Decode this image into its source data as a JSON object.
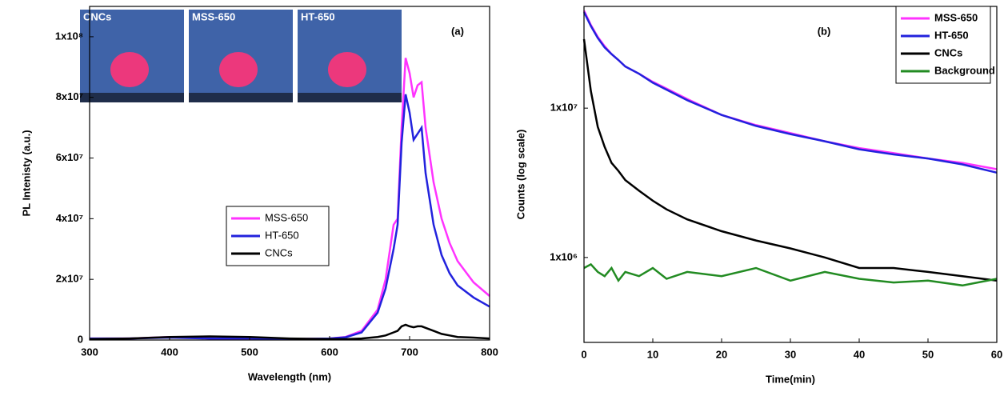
{
  "chart_data": [
    {
      "type": "line",
      "panel_label": "(a)",
      "x_label": "Wavelength (nm)",
      "y_label": "PL Intenisty (a.u.)",
      "inset_labels": [
        "CNCs",
        "MSS-650",
        "HT-650"
      ],
      "x": [
        300,
        350,
        400,
        450,
        500,
        550,
        600,
        620,
        640,
        660,
        670,
        680,
        685,
        690,
        695,
        700,
        705,
        710,
        715,
        720,
        730,
        740,
        750,
        760,
        780,
        800
      ],
      "series": [
        {
          "name": "MSS-650",
          "color": "#ff33ff",
          "values": [
            500000,
            500000,
            1000000,
            500000,
            500000,
            300000,
            500000,
            1000000,
            3000000,
            10000000,
            20000000,
            38000000,
            40000000,
            70000000,
            93000000,
            88000000,
            80000000,
            84000000,
            85000000,
            70000000,
            52000000,
            40000000,
            32000000,
            26000000,
            19000000,
            14500000
          ]
        },
        {
          "name": "HT-650",
          "color": "#2222dd",
          "values": [
            500000,
            500000,
            800000,
            500000,
            500000,
            300000,
            500000,
            900000,
            2500000,
            9000000,
            17000000,
            30000000,
            38000000,
            65000000,
            81000000,
            75000000,
            66000000,
            68000000,
            70000000,
            55000000,
            38000000,
            28000000,
            22000000,
            18000000,
            14000000,
            11000000
          ]
        },
        {
          "name": "CNCs",
          "color": "#000000",
          "values": [
            300000,
            500000,
            1000000,
            1200000,
            1000000,
            500000,
            300000,
            300000,
            500000,
            1000000,
            1500000,
            2500000,
            3000000,
            4500000,
            5000000,
            4500000,
            4200000,
            4500000,
            4500000,
            4000000,
            3000000,
            2000000,
            1500000,
            1000000,
            800000,
            500000
          ]
        }
      ],
      "xlim": [
        300,
        800
      ],
      "xticks": [
        300,
        400,
        500,
        600,
        700,
        800
      ],
      "ylim": [
        0,
        110000000
      ],
      "yticks": [
        0,
        {
          "value": 20000000,
          "label": "2x10⁷"
        },
        {
          "value": 40000000,
          "label": "4x10⁷"
        },
        {
          "value": 60000000,
          "label": "6x10⁷"
        },
        {
          "value": 80000000,
          "label": "8x10⁷"
        },
        {
          "value": 100000000,
          "label": "1x10⁸"
        }
      ],
      "log_y": false,
      "legend_loc": "center"
    },
    {
      "type": "line",
      "panel_label": "(b)",
      "x_label": "Time(min)",
      "y_label": "Counts (log scale)",
      "x": [
        0,
        1,
        2,
        3,
        4,
        5,
        6,
        8,
        10,
        12,
        15,
        20,
        25,
        30,
        35,
        40,
        45,
        50,
        55,
        60
      ],
      "series": [
        {
          "name": "MSS-650",
          "color": "#ff33ff",
          "values": [
            45000000,
            36000000,
            30000000,
            26000000,
            23000000,
            21000000,
            19000000,
            17000000,
            15000000,
            13500000,
            11500000,
            9000000,
            7700000,
            6800000,
            6000000,
            5400000,
            5000000,
            4600000,
            4300000,
            3900000
          ]
        },
        {
          "name": "HT-650",
          "color": "#2222dd",
          "values": [
            44000000,
            35500000,
            29500000,
            25500000,
            23000000,
            21000000,
            19000000,
            17000000,
            14800000,
            13300000,
            11300000,
            9000000,
            7600000,
            6700000,
            6000000,
            5300000,
            4900000,
            4600000,
            4200000,
            3700000
          ]
        },
        {
          "name": "CNCs",
          "color": "#000000",
          "values": [
            29000000,
            13000000,
            7500000,
            5500000,
            4300000,
            3800000,
            3300000,
            2800000,
            2400000,
            2100000,
            1800000,
            1500000,
            1300000,
            1150000,
            1000000,
            850000,
            850000,
            800000,
            750000,
            700000
          ]
        },
        {
          "name": "Background",
          "color": "#228b22",
          "values": [
            850000,
            900000,
            800000,
            750000,
            850000,
            700000,
            800000,
            750000,
            850000,
            720000,
            800000,
            750000,
            850000,
            700000,
            800000,
            720000,
            680000,
            700000,
            650000,
            720000
          ]
        }
      ],
      "xlim": [
        0,
        60
      ],
      "xticks": [
        0,
        10,
        20,
        30,
        40,
        50,
        60
      ],
      "ylim": [
        270000,
        48000000
      ],
      "yticks": [
        {
          "value": 1000000,
          "label": "1x10⁶"
        },
        {
          "value": 10000000,
          "label": "1x10⁷"
        }
      ],
      "log_y": true,
      "legend_loc": "upper right"
    }
  ]
}
